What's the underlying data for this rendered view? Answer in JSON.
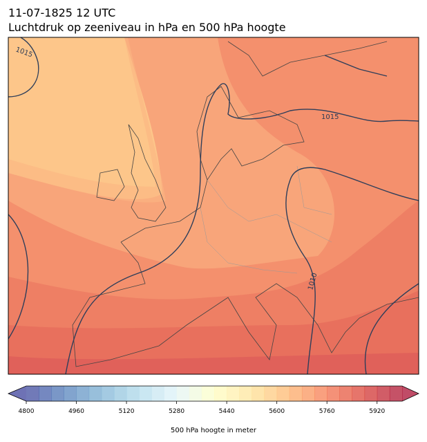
{
  "title": [
    "11-07-1825 12 UTC",
    "Luchtdruk op zeeniveau in hPa en 500 hPa hoogte"
  ],
  "map": {
    "contour_labels": [
      "1015",
      "1015",
      "1010"
    ]
  },
  "colorbar": {
    "label": "500 hPa hoogte in meter",
    "range": [
      4800,
      6000
    ],
    "step": 40,
    "ticks": [
      4800,
      4960,
      5120,
      5280,
      5440,
      5600,
      5760,
      5920
    ],
    "colormap": [
      "#313695",
      "#4575b4",
      "#74add1",
      "#abd9e9",
      "#e0f3f8",
      "#ffffbf",
      "#fee090",
      "#fdae61",
      "#f46d43",
      "#d73027",
      "#a50026"
    ],
    "alpha": 0.7
  }
}
